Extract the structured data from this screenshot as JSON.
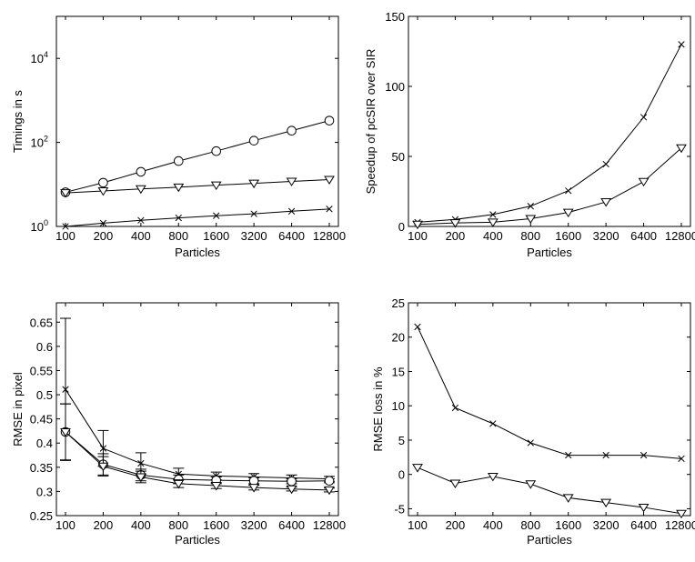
{
  "chart_data": [
    {
      "type": "line",
      "xlabel": "Particles",
      "ylabel": "Timings in s",
      "yscale": "log",
      "ylim": [
        1,
        100000
      ],
      "y_ticks": [
        {
          "value": 1,
          "base": "10",
          "exp": "0"
        },
        {
          "value": 100,
          "base": "10",
          "exp": "2"
        },
        {
          "value": 10000,
          "base": "10",
          "exp": "4"
        }
      ],
      "x_labels": [
        "100",
        "200",
        "400",
        "800",
        "1600",
        "3200",
        "6400",
        "12800"
      ],
      "series": [
        {
          "marker": "circle",
          "values": [
            6.5,
            11,
            20,
            36,
            62,
            110,
            190,
            330
          ]
        },
        {
          "marker": "triangle",
          "values": [
            6.3,
            7.0,
            7.8,
            8.6,
            9.6,
            10.6,
            11.8,
            13
          ]
        },
        {
          "marker": "x",
          "values": [
            1.0,
            1.2,
            1.4,
            1.6,
            1.8,
            2.0,
            2.3,
            2.6
          ]
        }
      ]
    },
    {
      "type": "line",
      "xlabel": "Particles",
      "ylabel": "Speedup of pcSIR over SIR",
      "yscale": "linear",
      "ylim": [
        0,
        150
      ],
      "y_ticks": [
        {
          "value": 0,
          "label": "0"
        },
        {
          "value": 50,
          "label": "50"
        },
        {
          "value": 100,
          "label": "100"
        },
        {
          "value": 150,
          "label": "150"
        }
      ],
      "x_labels": [
        "100",
        "200",
        "400",
        "800",
        "1600",
        "3200",
        "6400",
        "12800"
      ],
      "series": [
        {
          "marker": "x",
          "values": [
            3,
            5,
            8.5,
            14.5,
            25.5,
            44.5,
            78,
            130
          ]
        },
        {
          "marker": "triangle",
          "values": [
            1.5,
            2.5,
            3,
            5.5,
            10,
            17.5,
            32,
            56
          ]
        }
      ]
    },
    {
      "type": "line",
      "xlabel": "Particles",
      "ylabel": "RMSE in pixel",
      "yscale": "linear",
      "ylim": [
        0.25,
        0.69
      ],
      "y_ticks": [
        {
          "value": 0.25,
          "label": "0.25"
        },
        {
          "value": 0.3,
          "label": "0.3"
        },
        {
          "value": 0.35,
          "label": "0.35"
        },
        {
          "value": 0.4,
          "label": "0.4"
        },
        {
          "value": 0.45,
          "label": "0.45"
        },
        {
          "value": 0.5,
          "label": "0.5"
        },
        {
          "value": 0.55,
          "label": "0.55"
        },
        {
          "value": 0.6,
          "label": "0.6"
        },
        {
          "value": 0.65,
          "label": "0.65"
        }
      ],
      "x_labels": [
        "100",
        "200",
        "400",
        "800",
        "1600",
        "3200",
        "6400",
        "12800"
      ],
      "series": [
        {
          "marker": "x",
          "values": [
            0.511,
            0.389,
            0.358,
            0.336,
            0.332,
            0.33,
            0.328,
            0.326
          ],
          "errors": [
            0.147,
            0.037,
            0.022,
            0.012,
            0.008,
            0.007,
            0.006,
            0.005
          ]
        },
        {
          "marker": "circle",
          "values": [
            0.423,
            0.356,
            0.334,
            0.325,
            0.323,
            0.322,
            0.321,
            0.322
          ],
          "errors": [
            0.058,
            0.022,
            0.012,
            0.009,
            0.007,
            0.006,
            0.005,
            0.004
          ]
        },
        {
          "marker": "triangle",
          "values": [
            0.423,
            0.352,
            0.33,
            0.316,
            0.312,
            0.308,
            0.305,
            0.303
          ],
          "errors": [
            0.058,
            0.02,
            0.012,
            0.008,
            0.006,
            0.005,
            0.004,
            0.004
          ]
        }
      ]
    },
    {
      "type": "line",
      "xlabel": "Particles",
      "ylabel": "RMSE loss in %",
      "yscale": "linear",
      "ylim": [
        -6,
        25
      ],
      "y_ticks": [
        {
          "value": -5,
          "label": "-5"
        },
        {
          "value": 0,
          "label": "0"
        },
        {
          "value": 5,
          "label": "5"
        },
        {
          "value": 10,
          "label": "10"
        },
        {
          "value": 15,
          "label": "15"
        },
        {
          "value": 20,
          "label": "20"
        },
        {
          "value": 25,
          "label": "25"
        }
      ],
      "x_labels": [
        "100",
        "200",
        "400",
        "800",
        "1600",
        "3200",
        "6400",
        "12800"
      ],
      "series": [
        {
          "marker": "x",
          "values": [
            21.5,
            9.7,
            7.4,
            4.6,
            2.8,
            2.8,
            2.8,
            2.3
          ]
        },
        {
          "marker": "triangle",
          "values": [
            1.0,
            -1.3,
            -0.3,
            -1.4,
            -3.4,
            -4.1,
            -4.8,
            -5.7
          ]
        }
      ]
    }
  ]
}
